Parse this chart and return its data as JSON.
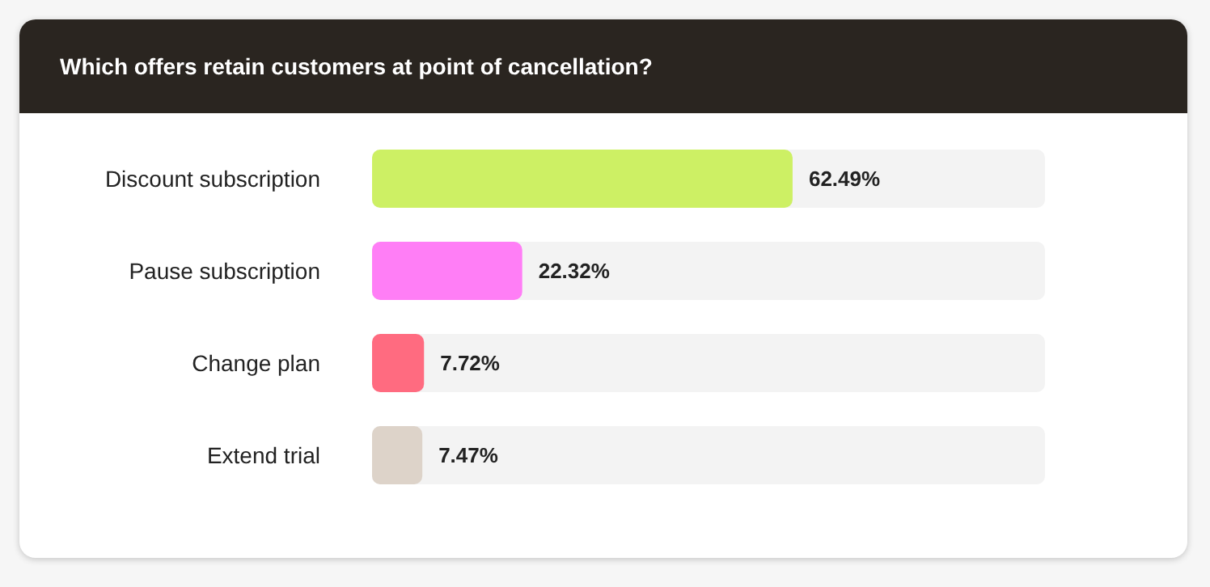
{
  "chart_data": {
    "type": "bar",
    "orientation": "horizontal",
    "title": "Which offers retain customers at point of cancellation?",
    "categories": [
      "Discount subscription",
      "Pause subscription",
      "Change plan",
      "Extend trial"
    ],
    "values": [
      62.49,
      22.32,
      7.72,
      7.47
    ],
    "colors": [
      "#cdf064",
      "#ff7ef6",
      "#ff6b80",
      "#ddd3c9"
    ],
    "value_labels": [
      "62.49%",
      "22.32%",
      "7.72%",
      "7.47%"
    ],
    "xlim": [
      0,
      100
    ],
    "tick_labels": "y"
  }
}
